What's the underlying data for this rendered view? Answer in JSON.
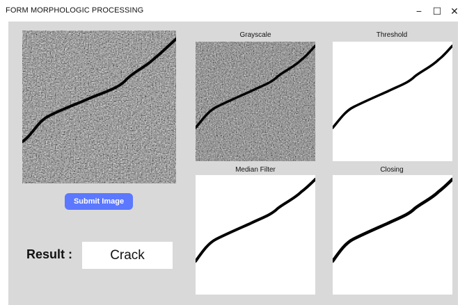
{
  "window": {
    "title": "FORM MORPHOLOGIC PROCESSING",
    "minimize_glyph": "−",
    "maximize_glyph": "☐",
    "close_glyph": "✕"
  },
  "panels": {
    "grayscale_caption": "Grayscale",
    "threshold_caption": "Threshold",
    "median_caption": "Median Filter",
    "closing_caption": "Closing"
  },
  "actions": {
    "submit_label": "Submit Image"
  },
  "result": {
    "label": "Result :",
    "value": "Crack"
  },
  "colors": {
    "submit_button": "#5b78ff",
    "client_bg": "#d9d9d9"
  }
}
